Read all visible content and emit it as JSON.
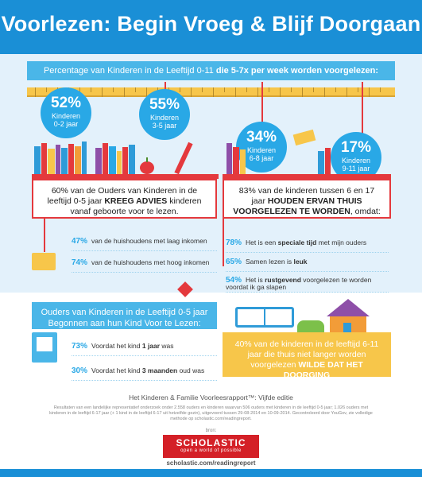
{
  "header": {
    "title": "Voorlezen: Begin Vroeg & Blijf Doorgaan"
  },
  "banner": {
    "prefix": "Percentage van Kinderen in de Leeftijd 0-11 ",
    "emphasis": "die 5-7x per week worden voorgelezen:"
  },
  "bubbles": [
    {
      "pct": "52%",
      "label1": "Kinderen",
      "label2": "0-2 jaar"
    },
    {
      "pct": "55%",
      "label1": "Kinderen",
      "label2": "3-5 jaar"
    },
    {
      "pct": "34%",
      "label1": "Kinderen",
      "label2": "6-8 jaar"
    },
    {
      "pct": "17%",
      "label1": "Kinderen",
      "label2": "9-11 jaar"
    }
  ],
  "left_stat": {
    "a": "60% van de Ouders van Kinderen in de leeftijd 0-5 jaar ",
    "bold": "KREEG ADVIES",
    "b": " kinderen vanaf geboorte voor te lezen."
  },
  "left_rows": [
    {
      "num": "47%",
      "text": "van de huishoudens met laag inkomen"
    },
    {
      "num": "74%",
      "text": "van de huishoudens met hoog inkomen"
    }
  ],
  "right_stat": {
    "a": "83% van de kinderen tussen 6 en 17 jaar ",
    "bold": "HOUDEN ERVAN THUIS VOORGELEZEN TE WORDEN",
    "b": ", omdat:"
  },
  "right_rows": [
    {
      "num": "78%",
      "pre": "Het is een ",
      "bold": "speciale tijd",
      "post": " met mijn ouders"
    },
    {
      "num": "65%",
      "pre": "Samen lezen is ",
      "bold": "leuk",
      "post": ""
    },
    {
      "num": "54%",
      "pre": "Het is ",
      "bold": "rustgevend",
      "post": " voorgelezen te worden voordat ik ga slapen"
    }
  ],
  "parents_box": {
    "line1": "Ouders van Kinderen in de Leeftijd 0-5 jaar",
    "line2": "Begonnen aan hun Kind Voor te Lezen:"
  },
  "parents_rows": [
    {
      "num": "73%",
      "pre": "Voordat het kind ",
      "bold": "1 jaar",
      "post": " was"
    },
    {
      "num": "30%",
      "pre": "Voordat het kind ",
      "bold": "3 maanden",
      "post": " oud was"
    }
  ],
  "stop_box": {
    "a": "40% van de kinderen in de leeftijd 6-11 jaar die thuis niet langer worden voorgelezen ",
    "bold": "WILDE DAT HET DOORGING"
  },
  "source": "Het Kinderen & Familie Voorleesrapport™: Vijfde editie",
  "fine_print": "Resultaten van een landelijke representatief onderzoek onder 2.558 ouders en kinderen waarvan 506 ouders met kinderen in de leeftijd 0-5 jaar; 1.026 ouders met kinderen in de leeftijd 6-17 jaar (+ 1 kind in de leeftijd 6-17 uit hetzelfde gezin), uitgevoerd tussen 29-08-2014 en 10-09-2014. Gecontroleerd door YouGov, zie volledige methode op scholastic.com/readingreport.",
  "bron": "bron:",
  "logo": {
    "name": "SCHOLASTIC",
    "tagline": "open a world of possible"
  },
  "url": "scholastic.com/readingreport",
  "colors": {
    "blue": "#1a8fd6",
    "light_blue": "#4ab6e8",
    "red": "#e4393d",
    "yellow": "#f7c64a"
  }
}
